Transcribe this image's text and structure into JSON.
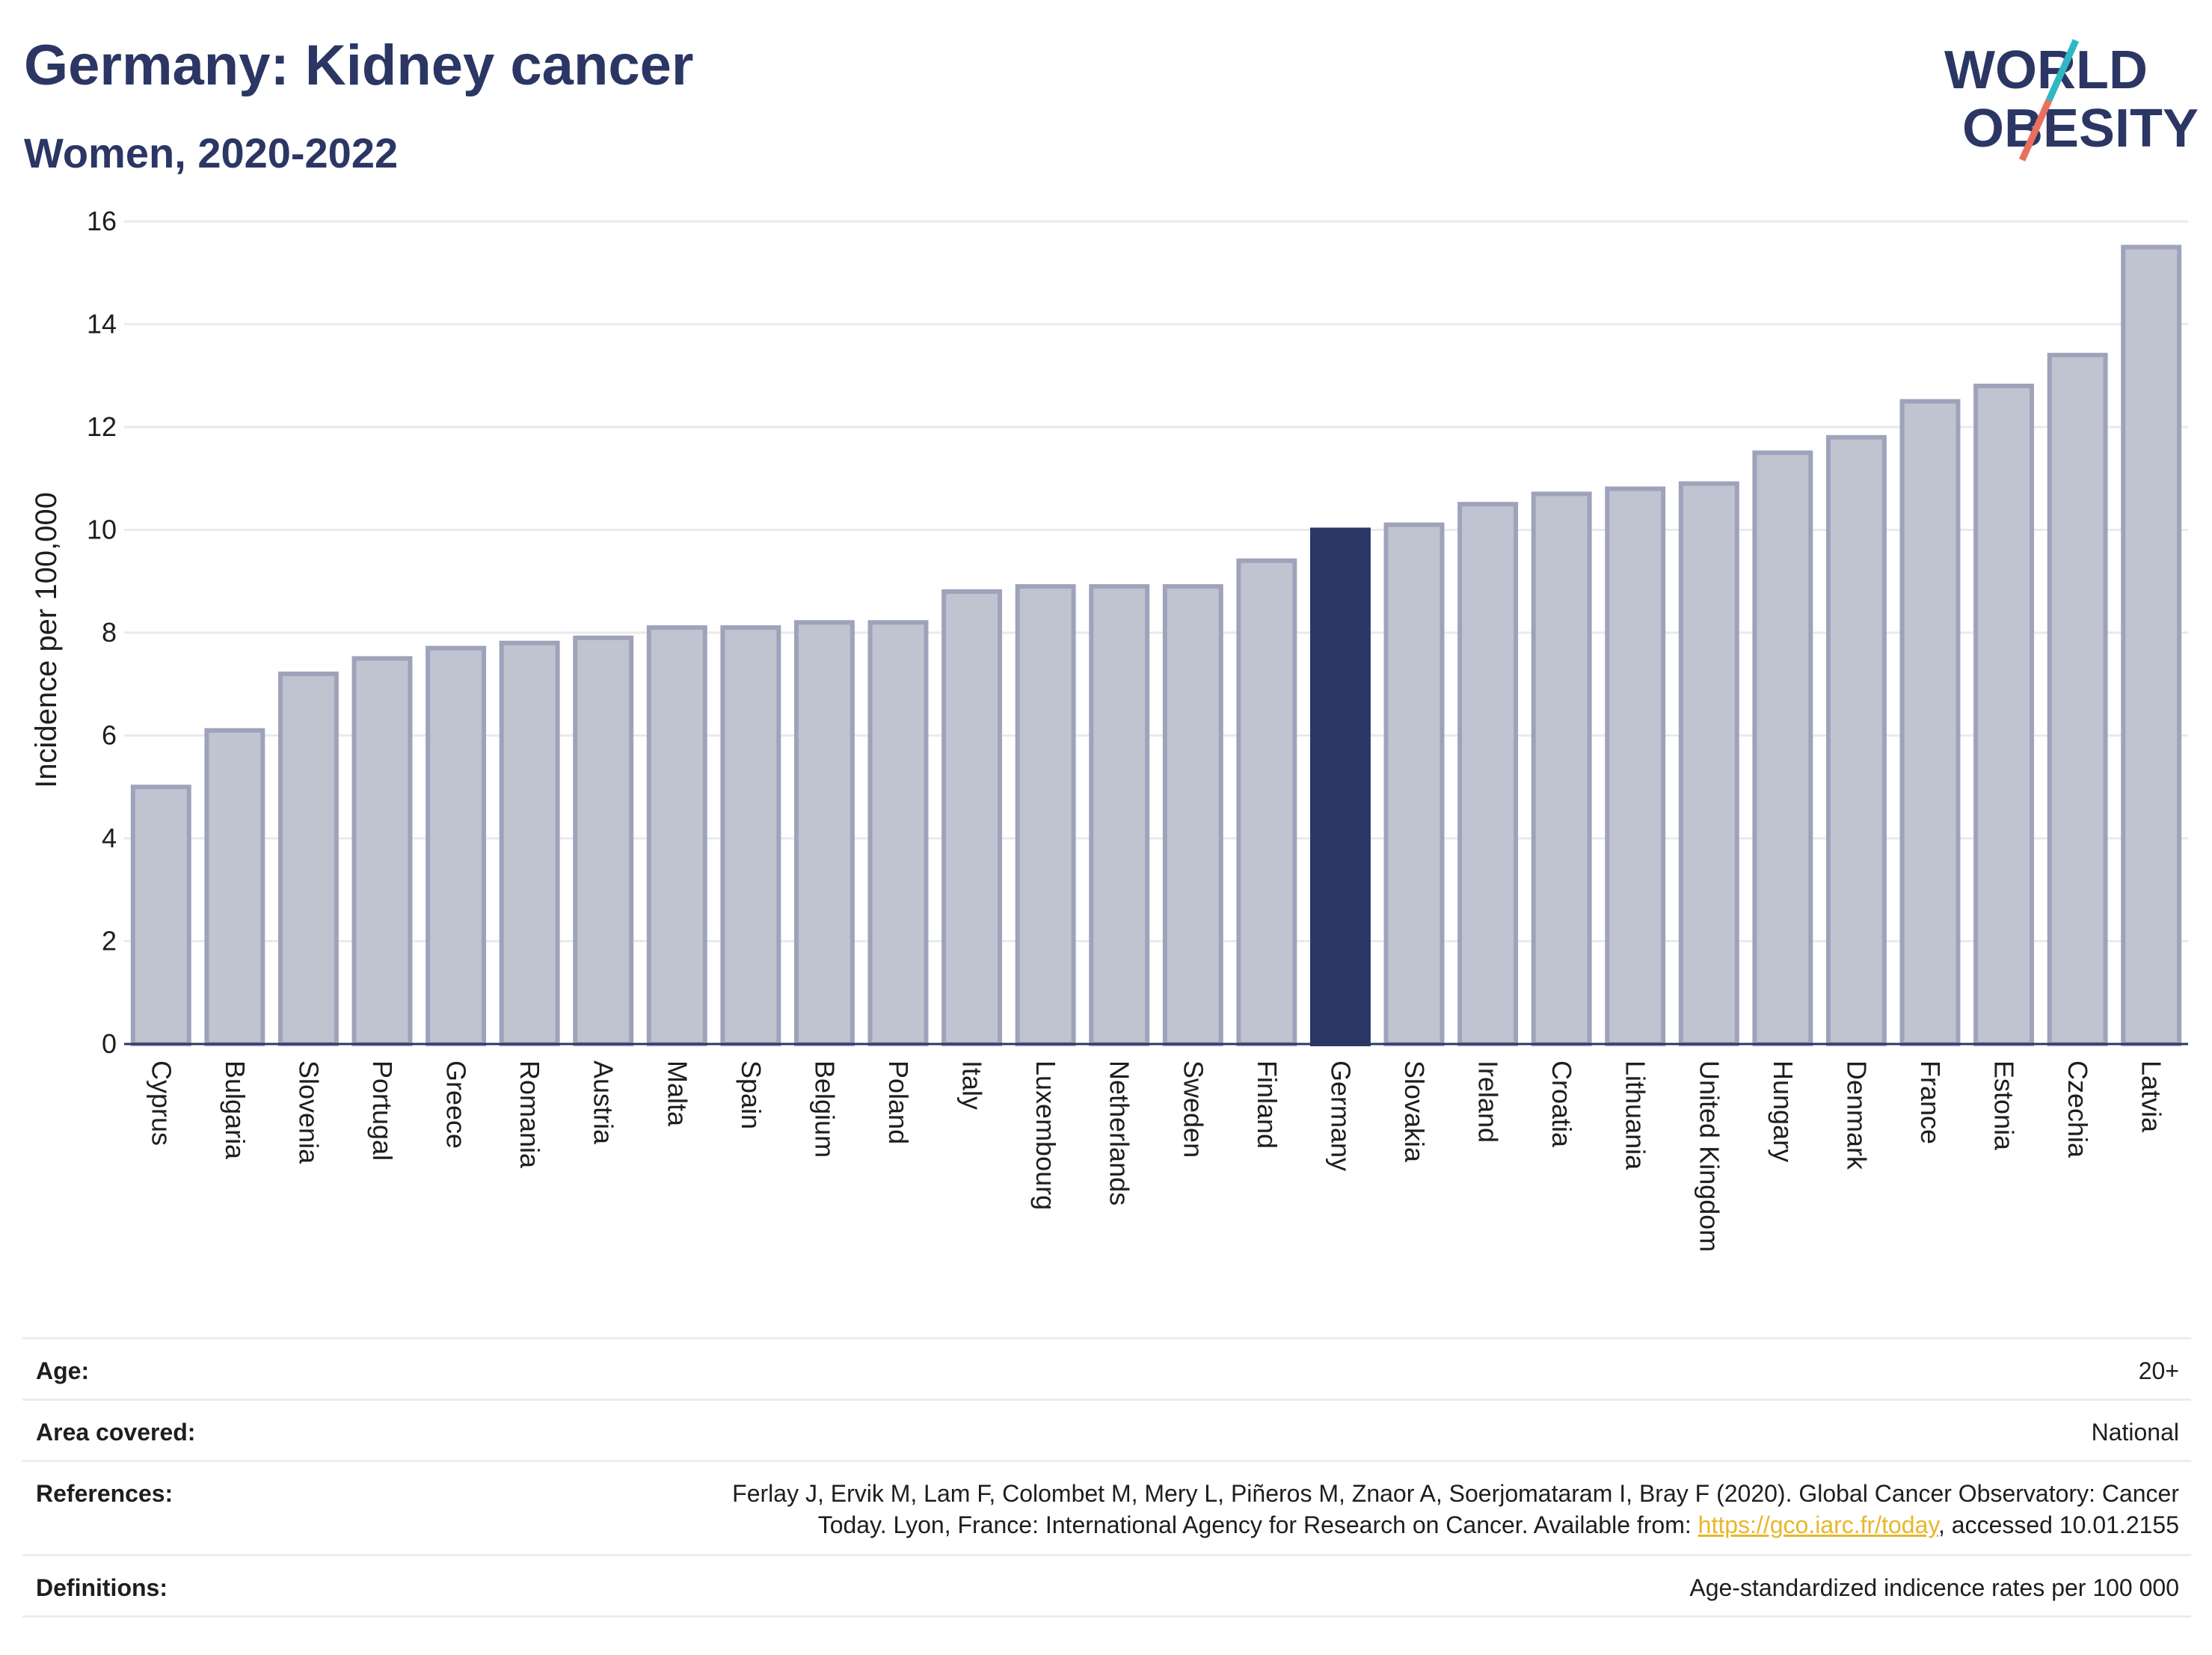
{
  "header": {
    "title": "Germany: Kidney cancer",
    "subtitle": "Women, 2020-2022"
  },
  "logo": {
    "line1": "WORLD",
    "line2": "OBESITY",
    "colors": {
      "text": "#2b3664",
      "slash_top": "#2fb8c2",
      "slash_bottom": "#e8705f"
    }
  },
  "colors": {
    "bar_default": "#c0c3d0",
    "bar_border": "#9ea3bb",
    "bar_highlight": "#2b3664",
    "grid": "#e8eaee",
    "axis": "#2b3664"
  },
  "chart_data": {
    "type": "bar",
    "categories": [
      "Cyprus",
      "Bulgaria",
      "Slovenia",
      "Portugal",
      "Greece",
      "Romania",
      "Austria",
      "Malta",
      "Spain",
      "Belgium",
      "Poland",
      "Italy",
      "Luxembourg",
      "Netherlands",
      "Sweden",
      "Finland",
      "Germany",
      "Slovakia",
      "Ireland",
      "Croatia",
      "Lithuania",
      "United Kingdom",
      "Hungary",
      "Denmark",
      "France",
      "Estonia",
      "Czechia",
      "Latvia"
    ],
    "values": [
      5.0,
      6.1,
      7.2,
      7.5,
      7.7,
      7.8,
      7.9,
      8.1,
      8.1,
      8.2,
      8.2,
      8.8,
      8.9,
      8.9,
      8.9,
      9.4,
      10.0,
      10.1,
      10.5,
      10.7,
      10.8,
      10.9,
      11.5,
      11.8,
      12.5,
      12.8,
      13.4,
      15.5
    ],
    "highlight": "Germany",
    "ylabel": "Incidence per 100,000",
    "xlabel": "",
    "ylim": [
      0,
      16
    ],
    "yticks": [
      0,
      2,
      4,
      6,
      8,
      10,
      12,
      14,
      16
    ],
    "ytick_labels": [
      "0",
      "2",
      "4",
      "6",
      "8",
      "10",
      "12",
      "14",
      "16"
    ],
    "grid": true,
    "legend": "none"
  },
  "meta": [
    {
      "label": "Age:",
      "value": "20+"
    },
    {
      "label": "Area covered:",
      "value": "National"
    },
    {
      "label": "References:",
      "value_line1": "Ferlay J, Ervik M, Lam F, Colombet M, Mery L, Piñeros M, Znaor A, Soerjomataram I, Bray F (2020). Global Cancer Observatory: Cancer",
      "value_line2_prefix": "Today. Lyon, France: International Agency for Research on Cancer. Available from: ",
      "link_text": "https://gco.iarc.fr/today",
      "value_line2_suffix": ", accessed 10.01.2155"
    },
    {
      "label": "Definitions:",
      "value": "Age-standardized indicence rates per 100 000"
    }
  ]
}
